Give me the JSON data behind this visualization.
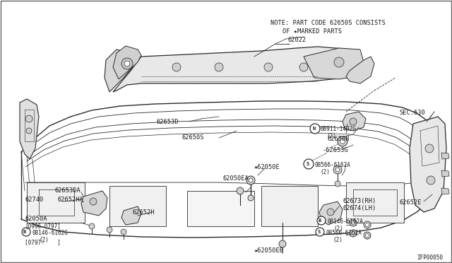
{
  "background_color": "#ffffff",
  "line_color": "#2a2a2a",
  "text_color": "#1a1a1a",
  "fig_width": 6.4,
  "fig_height": 3.72,
  "dpi": 100,
  "note_line1": "NOTE: PART CODE 62650S CONSISTS",
  "note_line2": "OF ★MARKED PARTS",
  "diagram_id": "IFP00050"
}
